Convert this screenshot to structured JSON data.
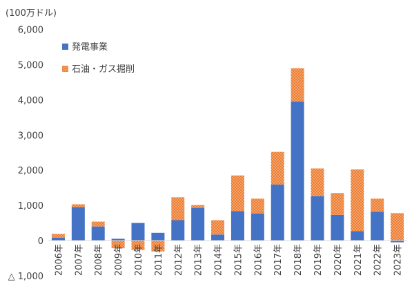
{
  "chart_data": {
    "type": "bar",
    "stacked": true,
    "unit_label": "(100万ドル)",
    "categories": [
      "2006年",
      "2007年",
      "2008年",
      "2009年",
      "2010年",
      "2011年",
      "2012年",
      "2013年",
      "2014年",
      "2015年",
      "2016年",
      "2017年",
      "2018年",
      "2019年",
      "2020年",
      "2021年",
      "2022年",
      "2023年"
    ],
    "series": [
      {
        "name": "発電事業",
        "color": "#4472C4",
        "pattern": "solid",
        "values": [
          80,
          950,
          400,
          50,
          500,
          220,
          580,
          930,
          170,
          840,
          770,
          1590,
          3950,
          1260,
          730,
          270,
          820,
          -50
        ]
      },
      {
        "name": "石油・ガス掘削",
        "color": "#ED7D31",
        "pattern": "dotted",
        "values": [
          110,
          80,
          140,
          -220,
          -270,
          -310,
          650,
          80,
          410,
          1010,
          420,
          930,
          950,
          790,
          620,
          1750,
          370,
          780
        ]
      }
    ],
    "ylim": [
      -1000,
      6000
    ],
    "yticks": [
      -1000,
      0,
      1000,
      2000,
      3000,
      4000,
      5000,
      6000
    ],
    "ytick_labels": [
      "△ 1,000",
      "0",
      "1,000",
      "2,000",
      "3,000",
      "4,000",
      "5,000",
      "6,000"
    ],
    "grid": false,
    "legend_position": "top-left"
  }
}
